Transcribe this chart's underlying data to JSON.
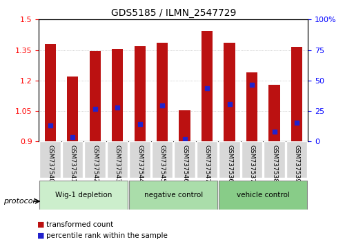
{
  "title": "GDS5185 / ILMN_2547729",
  "samples": [
    "GSM737540",
    "GSM737541",
    "GSM737542",
    "GSM737543",
    "GSM737544",
    "GSM737545",
    "GSM737546",
    "GSM737547",
    "GSM737536",
    "GSM737537",
    "GSM737538",
    "GSM737539"
  ],
  "transformed_counts": [
    1.38,
    1.22,
    1.345,
    1.355,
    1.37,
    1.385,
    1.052,
    1.445,
    1.385,
    1.24,
    1.18,
    1.365
  ],
  "percentile_ranks": [
    0.13,
    0.035,
    0.27,
    0.28,
    0.145,
    0.295,
    0.02,
    0.435,
    0.305,
    0.465,
    0.08,
    0.155
  ],
  "y_min": 0.9,
  "y_max": 1.5,
  "y_ticks_left": [
    0.9,
    1.05,
    1.2,
    1.35,
    1.5
  ],
  "y_ticks_right": [
    0,
    25,
    50,
    75,
    100
  ],
  "bar_color": "#bb1111",
  "dot_color": "#2222cc",
  "groups": [
    {
      "label": "Wig-1 depletion",
      "start": 0,
      "end": 4,
      "color": "#cceecc"
    },
    {
      "label": "negative control",
      "start": 4,
      "end": 8,
      "color": "#aaddaa"
    },
    {
      "label": "vehicle control",
      "start": 8,
      "end": 12,
      "color": "#88cc88"
    }
  ],
  "protocol_label": "protocol",
  "legend_entries": [
    {
      "label": "transformed count",
      "color": "#bb1111"
    },
    {
      "label": "percentile rank within the sample",
      "color": "#2222cc"
    }
  ],
  "bar_width": 0.5,
  "grid_color": "#aaaaaa",
  "background_plot": "#ffffff",
  "background_group": "#dddddd"
}
